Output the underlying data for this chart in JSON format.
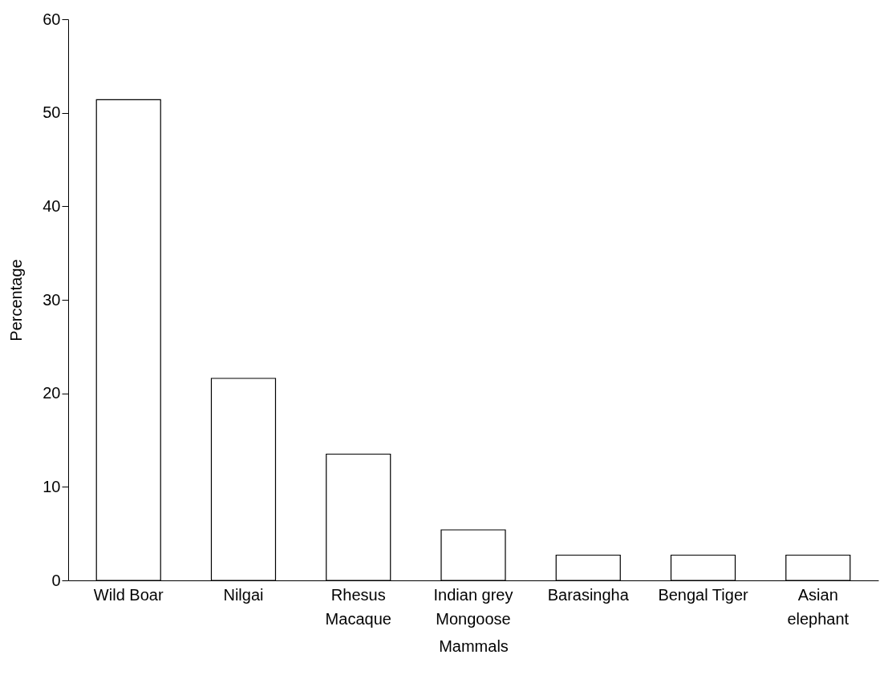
{
  "chart_data": {
    "type": "bar",
    "xlabel": "Mammals",
    "ylabel": "Percentage",
    "categories": [
      "Wild Boar",
      "Nilgai",
      "Rhesus Macaque",
      "Indian grey Mongoose",
      "Barasingha",
      "Bengal Tiger",
      "Asian elephant"
    ],
    "values": [
      51.4,
      21.6,
      13.5,
      5.4,
      2.7,
      2.7,
      2.7
    ],
    "colors": [
      "#ffffff",
      "#ffffff",
      "#ffffff",
      "#ffffff",
      "#ffffff",
      "#ffffff",
      "#ffffff"
    ],
    "ylim": [
      0,
      60
    ],
    "yticks": [
      0,
      10,
      20,
      30,
      40,
      50,
      60
    ],
    "grid": false
  }
}
